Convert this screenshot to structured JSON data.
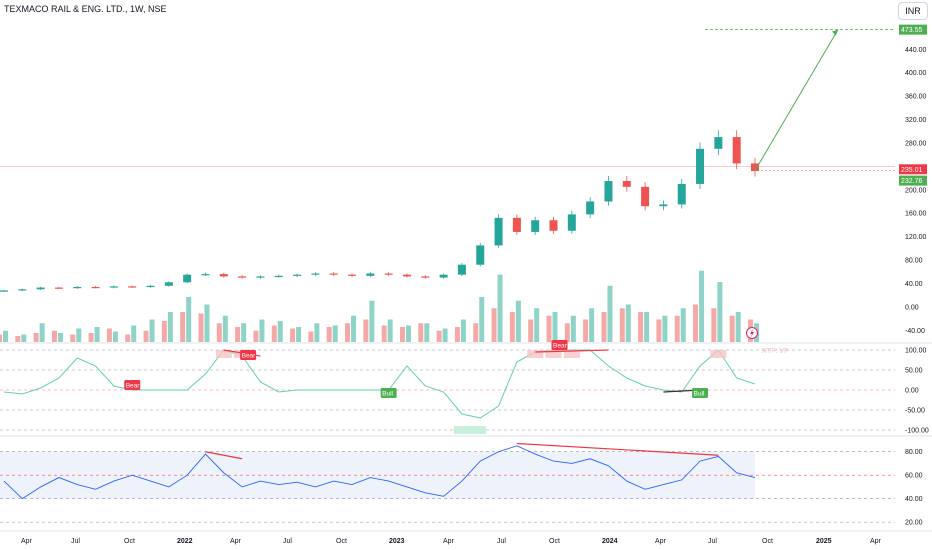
{
  "header": {
    "symbol_title": "TEXMACO RAIL & ENG. LTD., 1W, NSE",
    "currency": "INR"
  },
  "indicators": {
    "oscillator_label": "RTF: VF",
    "badges": {
      "bear": "Bear",
      "bull": "Bull"
    }
  },
  "colors": {
    "up": "#26a69a",
    "down": "#ef5350",
    "vol_up": "#8fd3c8",
    "vol_down": "#f5a9a6",
    "osc_line": "#5fd3a5",
    "osc_neg_line": "#f06292",
    "rsi_line": "#2962ff",
    "rsi_low_line": "#333333",
    "target_green": "#4caf50",
    "price_red": "#f23645",
    "bear_red": "#f23645",
    "bull_green": "#4caf50"
  },
  "chart_data": [
    {
      "type": "candlestick",
      "title": "TEXMACO RAIL & ENG. LTD., 1W, NSE",
      "x_axis_ticks": [
        "Apr",
        "Jul",
        "Oct",
        "2022",
        "Apr",
        "Jul",
        "Oct",
        "2023",
        "Apr",
        "Jul",
        "Oct",
        "2024",
        "Apr",
        "Jul",
        "Oct",
        "2025",
        "Apr"
      ],
      "y_axis_ticks": [
        "473.55",
        "440.00",
        "400.00",
        "360.00",
        "320.00",
        "280.00",
        "235.01",
        "232.76",
        "200.00",
        "160.00",
        "120.00",
        "80.00",
        "40.00",
        "0.00",
        "-40.00"
      ],
      "ylim": [
        -60,
        490
      ],
      "price_labels": [
        {
          "label": "473.55",
          "value": 473.55
        },
        {
          "label": "235.01",
          "value": 235.01
        },
        {
          "label": "232.76",
          "value": 232.76
        }
      ],
      "tick_values": [
        440,
        400,
        360,
        320,
        280,
        200,
        160,
        120,
        80,
        40,
        0,
        -40
      ],
      "close_series_x": [
        "2021-04",
        "2021-05",
        "2021-06",
        "2021-07",
        "2021-08",
        "2021-09",
        "2021-10",
        "2021-11",
        "2021-12",
        "2022-01",
        "2022-02",
        "2022-03",
        "2022-04",
        "2022-05",
        "2022-06",
        "2022-07",
        "2022-08",
        "2022-09",
        "2022-10",
        "2022-11",
        "2022-12",
        "2023-01",
        "2023-02",
        "2023-03",
        "2023-04",
        "2023-05",
        "2023-06",
        "2023-07",
        "2023-08",
        "2023-09",
        "2023-10",
        "2023-11",
        "2023-12",
        "2024-01",
        "2024-02",
        "2024-03",
        "2024-04",
        "2024-05",
        "2024-06",
        "2024-07",
        "2024-08",
        "2024-09"
      ],
      "close_series_y": [
        28,
        30,
        33,
        32,
        34,
        33,
        35,
        34,
        36,
        42,
        55,
        56,
        52,
        50,
        52,
        53,
        55,
        57,
        55,
        53,
        57,
        55,
        52,
        50,
        55,
        72,
        105,
        152,
        128,
        148,
        130,
        158,
        180,
        215,
        205,
        172,
        175,
        210,
        270,
        290,
        245,
        232
      ],
      "projection": {
        "from_value": 232.76,
        "to_value": 473.55
      },
      "volume_up_pct": [
        15,
        10,
        25,
        12,
        18,
        20,
        14,
        22,
        30,
        40,
        60,
        50,
        35,
        25,
        30,
        28,
        20,
        25,
        22,
        35,
        55,
        30,
        22,
        25,
        18,
        30,
        60,
        90,
        55,
        45,
        40,
        35,
        45,
        75,
        50,
        40,
        35,
        45,
        95,
        80,
        40,
        25
      ],
      "volume_down_pct": [
        10,
        8,
        12,
        15,
        10,
        12,
        18,
        10,
        15,
        28,
        40,
        38,
        25,
        20,
        15,
        22,
        18,
        14,
        20,
        25,
        30,
        22,
        20,
        25,
        15,
        20,
        25,
        45,
        40,
        30,
        35,
        25,
        30,
        40,
        45,
        40,
        30,
        35,
        50,
        45,
        35,
        30
      ]
    },
    {
      "type": "line",
      "name_label": "RTF: VF",
      "y_axis_ticks": [
        "100.00",
        "50.00",
        "0.00",
        "-50.00",
        "-100.00"
      ],
      "tick_values": [
        100,
        50,
        0,
        -50,
        -100
      ],
      "ylim": [
        -110,
        110
      ],
      "values": [
        -5,
        -10,
        5,
        30,
        80,
        60,
        10,
        0,
        0,
        0,
        0,
        40,
        100,
        85,
        20,
        -5,
        0,
        0,
        0,
        0,
        0,
        0,
        60,
        10,
        -5,
        -60,
        -70,
        -40,
        70,
        95,
        100,
        100,
        100,
        60,
        30,
        10,
        0,
        -5,
        60,
        100,
        30,
        15
      ],
      "annotations": [
        "Bear",
        "Bear",
        "Bear",
        "Bull",
        "Bull"
      ]
    },
    {
      "type": "line",
      "y_axis_ticks": [
        "80.00",
        "60.00",
        "40.00",
        "20.00"
      ],
      "tick_values": [
        80,
        60,
        40,
        20
      ],
      "ylim": [
        15,
        90
      ],
      "values": [
        55,
        40,
        50,
        58,
        52,
        48,
        55,
        60,
        55,
        50,
        60,
        78,
        62,
        50,
        55,
        52,
        54,
        50,
        55,
        52,
        58,
        55,
        50,
        45,
        42,
        55,
        72,
        80,
        85,
        78,
        72,
        70,
        74,
        68,
        55,
        48,
        52,
        56,
        72,
        76,
        62,
        58
      ]
    }
  ]
}
